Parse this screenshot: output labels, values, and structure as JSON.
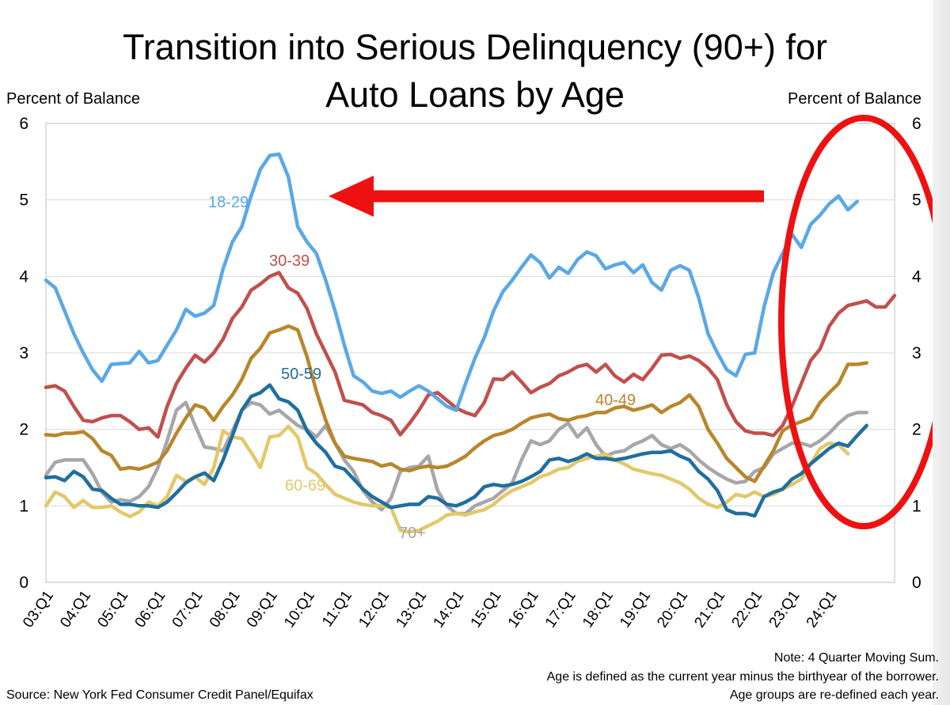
{
  "title_line1": "Transition into Serious Delinquency (90+) for",
  "title_line2": "Auto Loans by Age",
  "ylabel_left": "Percent of Balance",
  "ylabel_right": "Percent of Balance",
  "note": "Note: 4 Quarter Moving Sum.",
  "footnote1": "Age is defined as the current year minus the birthyear of the borrower.",
  "footnote2": "Age groups are re-defined each year.",
  "source": "Source: New York Fed Consumer Credit Panel/Equifax",
  "colors": {
    "accent_red": "#ee1111",
    "grid": "#d9d9d9"
  },
  "annotations": {
    "arrow": "red arrow pointing left",
    "circle": "red ellipse highlighting 2022-2024"
  },
  "chart_data": {
    "type": "line",
    "ylim": [
      0,
      6
    ],
    "yticks": [
      0,
      1,
      2,
      3,
      4,
      5,
      6
    ],
    "xticks": [
      "03:Q1",
      "04:Q1",
      "05:Q1",
      "06:Q1",
      "07:Q1",
      "08:Q1",
      "09:Q1",
      "10:Q1",
      "11:Q1",
      "12:Q1",
      "13:Q1",
      "14:Q1",
      "15:Q1",
      "16:Q1",
      "17:Q1",
      "18:Q1",
      "19:Q1",
      "20:Q1",
      "21:Q1",
      "22:Q1",
      "23:Q1",
      "24:Q1"
    ],
    "grid": true,
    "series": [
      {
        "name": "18-29",
        "color": "#5aa8e6",
        "values": [
          3.95,
          3.85,
          3.55,
          3.25,
          3.0,
          2.78,
          2.63,
          2.85,
          2.86,
          2.87,
          3.02,
          2.87,
          2.9,
          3.1,
          3.3,
          3.57,
          3.48,
          3.52,
          3.62,
          4.1,
          4.45,
          4.65,
          5.05,
          5.4,
          5.58,
          5.6,
          5.3,
          4.65,
          4.45,
          4.3,
          3.95,
          3.55,
          3.1,
          2.7,
          2.62,
          2.5,
          2.47,
          2.5,
          2.42,
          2.5,
          2.57,
          2.5,
          2.4,
          2.3,
          2.25,
          2.6,
          2.93,
          3.2,
          3.55,
          3.8,
          3.95,
          4.12,
          4.28,
          4.18,
          3.98,
          4.12,
          4.04,
          4.22,
          4.32,
          4.27,
          4.1,
          4.15,
          4.18,
          4.05,
          4.15,
          3.92,
          3.82,
          4.08,
          4.14,
          4.08,
          3.72,
          3.25,
          3.0,
          2.78,
          2.7,
          2.98,
          3.0,
          3.6,
          4.05,
          4.3,
          4.55,
          4.38,
          4.68,
          4.8,
          4.95,
          5.05,
          4.87,
          4.98
        ]
      },
      {
        "name": "30-39",
        "color": "#c0504d",
        "values": [
          2.55,
          2.57,
          2.5,
          2.3,
          2.12,
          2.1,
          2.15,
          2.18,
          2.18,
          2.1,
          2.0,
          2.02,
          1.9,
          2.3,
          2.6,
          2.8,
          2.97,
          2.88,
          3.0,
          3.18,
          3.45,
          3.6,
          3.82,
          3.9,
          4.0,
          4.05,
          3.85,
          3.78,
          3.58,
          3.25,
          3.0,
          2.75,
          2.38,
          2.35,
          2.32,
          2.22,
          2.18,
          2.12,
          1.93,
          2.08,
          2.25,
          2.45,
          2.48,
          2.38,
          2.28,
          2.22,
          2.18,
          2.35,
          2.66,
          2.65,
          2.75,
          2.62,
          2.48,
          2.55,
          2.6,
          2.7,
          2.75,
          2.82,
          2.85,
          2.75,
          2.85,
          2.7,
          2.62,
          2.72,
          2.65,
          2.8,
          2.97,
          2.98,
          2.93,
          2.96,
          2.9,
          2.8,
          2.65,
          2.32,
          2.1,
          1.98,
          1.95,
          1.95,
          1.92,
          2.05,
          2.3,
          2.6,
          2.9,
          3.05,
          3.35,
          3.52,
          3.62,
          3.65,
          3.68,
          3.6,
          3.6,
          3.75
        ]
      },
      {
        "name": "40-49",
        "color": "#b8862b",
        "values": [
          1.93,
          1.92,
          1.95,
          1.95,
          1.97,
          1.88,
          1.72,
          1.66,
          1.48,
          1.5,
          1.48,
          1.52,
          1.57,
          1.72,
          1.95,
          2.15,
          2.32,
          2.28,
          2.12,
          2.3,
          2.45,
          2.65,
          2.93,
          3.06,
          3.26,
          3.3,
          3.35,
          3.3,
          2.95,
          2.5,
          2.12,
          1.82,
          1.65,
          1.62,
          1.6,
          1.58,
          1.52,
          1.55,
          1.48,
          1.46,
          1.5,
          1.52,
          1.5,
          1.52,
          1.58,
          1.65,
          1.76,
          1.85,
          1.92,
          1.95,
          2.0,
          2.08,
          2.15,
          2.18,
          2.2,
          2.14,
          2.12,
          2.16,
          2.18,
          2.22,
          2.22,
          2.28,
          2.3,
          2.25,
          2.28,
          2.32,
          2.22,
          2.3,
          2.35,
          2.45,
          2.3,
          2.0,
          1.82,
          1.62,
          1.5,
          1.38,
          1.32,
          1.52,
          1.72,
          1.98,
          2.06,
          2.1,
          2.15,
          2.35,
          2.48,
          2.6,
          2.85,
          2.85,
          2.87
        ]
      },
      {
        "name": "50-59",
        "color": "#1f6f9e",
        "values": [
          1.37,
          1.38,
          1.33,
          1.45,
          1.38,
          1.22,
          1.2,
          1.1,
          1.02,
          1.02,
          1.0,
          1.0,
          0.98,
          1.05,
          1.17,
          1.3,
          1.38,
          1.43,
          1.33,
          1.6,
          1.92,
          2.25,
          2.43,
          2.48,
          2.58,
          2.4,
          2.36,
          2.25,
          1.98,
          1.82,
          1.7,
          1.52,
          1.48,
          1.35,
          1.22,
          1.12,
          1.05,
          0.98,
          1.0,
          1.02,
          1.02,
          1.12,
          1.1,
          1.02,
          1.0,
          1.05,
          1.12,
          1.25,
          1.28,
          1.26,
          1.28,
          1.32,
          1.38,
          1.45,
          1.6,
          1.62,
          1.58,
          1.62,
          1.68,
          1.62,
          1.62,
          1.6,
          1.62,
          1.65,
          1.68,
          1.7,
          1.7,
          1.72,
          1.65,
          1.6,
          1.45,
          1.35,
          1.2,
          0.95,
          0.9,
          0.9,
          0.87,
          1.12,
          1.18,
          1.22,
          1.35,
          1.42,
          1.55,
          1.65,
          1.75,
          1.82,
          1.78,
          1.92,
          2.05
        ]
      },
      {
        "name": "60-69",
        "color": "#e3c86a",
        "values": [
          1.0,
          1.18,
          1.12,
          0.98,
          1.07,
          0.98,
          0.98,
          1.0,
          0.92,
          0.86,
          0.92,
          1.05,
          1.0,
          1.12,
          1.4,
          1.32,
          1.38,
          1.28,
          1.5,
          1.98,
          1.9,
          1.88,
          1.7,
          1.5,
          1.9,
          1.92,
          2.04,
          1.9,
          1.5,
          1.42,
          1.28,
          1.15,
          1.1,
          1.05,
          1.02,
          1.0,
          1.0,
          0.98,
          0.68,
          0.66,
          0.68,
          0.74,
          0.8,
          0.88,
          0.9,
          0.88,
          0.92,
          0.95,
          1.02,
          1.12,
          1.2,
          1.25,
          1.3,
          1.38,
          1.42,
          1.48,
          1.5,
          1.58,
          1.62,
          1.65,
          1.68,
          1.6,
          1.55,
          1.48,
          1.45,
          1.42,
          1.4,
          1.35,
          1.3,
          1.22,
          1.1,
          1.02,
          0.98,
          1.05,
          1.15,
          1.12,
          1.18,
          1.12,
          1.15,
          1.22,
          1.28,
          1.35,
          1.55,
          1.75,
          1.82,
          1.8,
          1.68
        ]
      },
      {
        "name": "70+",
        "color": "#a6a6ab",
        "values": [
          1.4,
          1.57,
          1.6,
          1.6,
          1.6,
          1.42,
          1.18,
          1.05,
          1.08,
          1.06,
          1.12,
          1.25,
          1.5,
          1.85,
          2.25,
          2.35,
          2.05,
          1.77,
          1.75,
          1.72,
          1.98,
          2.25,
          2.35,
          2.32,
          2.2,
          2.25,
          2.15,
          2.05,
          2.0,
          1.9,
          2.05,
          1.82,
          1.6,
          1.45,
          1.2,
          1.05,
          0.95,
          1.1,
          1.45,
          1.5,
          1.52,
          1.65,
          1.2,
          1.0,
          0.9,
          0.9,
          1.0,
          1.05,
          1.1,
          1.2,
          1.3,
          1.6,
          1.85,
          1.8,
          1.85,
          2.0,
          2.08,
          1.9,
          2.02,
          1.8,
          1.65,
          1.7,
          1.72,
          1.8,
          1.85,
          1.92,
          1.8,
          1.75,
          1.8,
          1.72,
          1.6,
          1.5,
          1.42,
          1.35,
          1.3,
          1.32,
          1.45,
          1.5,
          1.68,
          1.75,
          1.82,
          1.82,
          1.78,
          1.85,
          1.95,
          2.08,
          2.18,
          2.22,
          2.22
        ]
      }
    ],
    "series_labels": [
      {
        "series": "18-29",
        "text": "18-29"
      },
      {
        "series": "30-39",
        "text": "30-39"
      },
      {
        "series": "40-49",
        "text": "40-49"
      },
      {
        "series": "50-59",
        "text": "50-59"
      },
      {
        "series": "60-69",
        "text": "60-69"
      },
      {
        "series": "70+",
        "text": "70+"
      }
    ]
  }
}
